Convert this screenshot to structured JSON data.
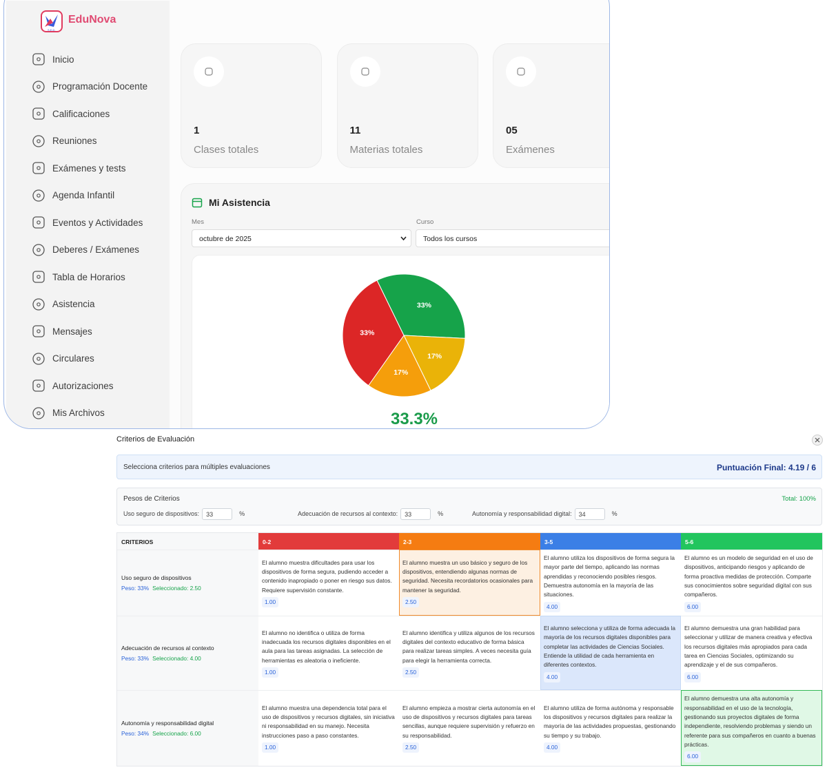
{
  "brand": "EduNova",
  "logo_text": "S.E.D.",
  "sidebar": [
    "Inicio",
    "Programación Docente",
    "Calificaciones",
    "Reuniones",
    "Exámenes y tests",
    "Agenda Infantil",
    "Eventos y Actividades",
    "Deberes / Exámenes",
    "Tabla de Horarios",
    "Asistencia",
    "Mensajes",
    "Circulares",
    "Autorizaciones",
    "Mis Archivos"
  ],
  "stats": [
    {
      "value": "1",
      "label": "Clases totales"
    },
    {
      "value": "11",
      "label": "Materias totales"
    },
    {
      "value": "05",
      "label": "Exámenes"
    }
  ],
  "attendance": {
    "title": "Mi Asistencia",
    "month_label": "Mes",
    "month": "octubre de 2025",
    "course_label": "Curso",
    "course": "Todos los cursos",
    "chart": {
      "type": "pie",
      "values": [
        33,
        17,
        17,
        33
      ],
      "colors": [
        "#16a34a",
        "#eab308",
        "#f59e0b",
        "#dc2626"
      ]
    },
    "rate": "33.3%"
  },
  "rubric": {
    "title": "Criterios de Evaluación",
    "hint": "Selecciona criterios para múltiples evaluaciones",
    "final": "Puntuación Final: 4.19 / 6",
    "weights_title": "Pesos de Criterios",
    "total": "Total: 100%",
    "weights": [
      {
        "label": "Uso seguro de dispositivos:",
        "value": "33",
        "unit": "%"
      },
      {
        "label": "Adecuación de recursos al contexto:",
        "value": "33",
        "unit": "%"
      },
      {
        "label": "Autonomía y responsabilidad digital:",
        "value": "34",
        "unit": "%"
      }
    ],
    "header": "CRITERIOS",
    "levels": [
      {
        "range": "0-2",
        "color": "#e23b3b"
      },
      {
        "range": "2-3",
        "color": "#f57c12"
      },
      {
        "range": "3-5",
        "color": "#3b7fe6"
      },
      {
        "range": "5-6",
        "color": "#22c55e"
      }
    ],
    "rows": [
      {
        "name": "Uso seguro de dispositivos",
        "weight": "Peso: 33%",
        "selected": "Seleccionado: 2.50",
        "selected_level": 1,
        "cells": [
          {
            "text": "El alumno muestra dificultades para usar los dispositivos de forma segura, pudiendo acceder a contenido inapropiado o poner en riesgo sus datos. Requiere supervisión constante.",
            "score": "1.00"
          },
          {
            "text": "El alumno muestra un uso básico y seguro de los dispositivos, entendiendo algunas normas de seguridad. Necesita recordatorios ocasionales para mantener la seguridad.",
            "score": "2.50"
          },
          {
            "text": "El alumno utiliza los dispositivos de forma segura la mayor parte del tiempo, aplicando las normas aprendidas y reconociendo posibles riesgos. Demuestra autonomía en la mayoría de las situaciones.",
            "score": "4.00"
          },
          {
            "text": "El alumno es un modelo de seguridad en el uso de dispositivos, anticipando riesgos y aplicando de forma proactiva medidas de protección. Comparte sus conocimientos sobre seguridad digital con sus compañeros.",
            "score": "6.00"
          }
        ]
      },
      {
        "name": "Adecuación de recursos al contexto",
        "weight": "Peso: 33%",
        "selected": "Seleccionado: 4.00",
        "selected_level": 2,
        "cells": [
          {
            "text": "El alumno no identifica o utiliza de forma inadecuada los recursos digitales disponibles en el aula para las tareas asignadas. La selección de herramientas es aleatoria o ineficiente.",
            "score": "1.00"
          },
          {
            "text": "El alumno identifica y utiliza algunos de los recursos digitales del contexto educativo de forma básica para realizar tareas simples. A veces necesita guía para elegir la herramienta correcta.",
            "score": "2.50"
          },
          {
            "text": "El alumno selecciona y utiliza de forma adecuada la mayoría de los recursos digitales disponibles para completar las actividades de Ciencias Sociales. Entiende la utilidad de cada herramienta en diferentes contextos.",
            "score": "4.00"
          },
          {
            "text": "El alumno demuestra una gran habilidad para seleccionar y utilizar de manera creativa y efectiva los recursos digitales más apropiados para cada tarea en Ciencias Sociales, optimizando su aprendizaje y el de sus compañeros.",
            "score": "6.00"
          }
        ]
      },
      {
        "name": "Autonomía y responsabilidad digital",
        "weight": "Peso: 34%",
        "selected": "Seleccionado: 6.00",
        "selected_level": 3,
        "cells": [
          {
            "text": "El alumno muestra una dependencia total para el uso de dispositivos y recursos digitales, sin iniciativa ni responsabilidad en su manejo. Necesita instrucciones paso a paso constantes.",
            "score": "1.00"
          },
          {
            "text": "El alumno empieza a mostrar cierta autonomía en el uso de dispositivos y recursos digitales para tareas sencillas, aunque requiere supervisión y refuerzo en su responsabilidad.",
            "score": "2.50"
          },
          {
            "text": "El alumno utiliza de forma autónoma y responsable los dispositivos y recursos digitales para realizar la mayoría de las actividades propuestas, gestionando su tiempo y su trabajo.",
            "score": "4.00"
          },
          {
            "text": "El alumno demuestra una alta autonomía y responsabilidad en el uso de la tecnología, gestionando sus proyectos digitales de forma independiente, resolviendo problemas y siendo un referente para sus compañeros en cuanto a buenas prácticas.",
            "score": "6.00"
          }
        ]
      }
    ]
  }
}
